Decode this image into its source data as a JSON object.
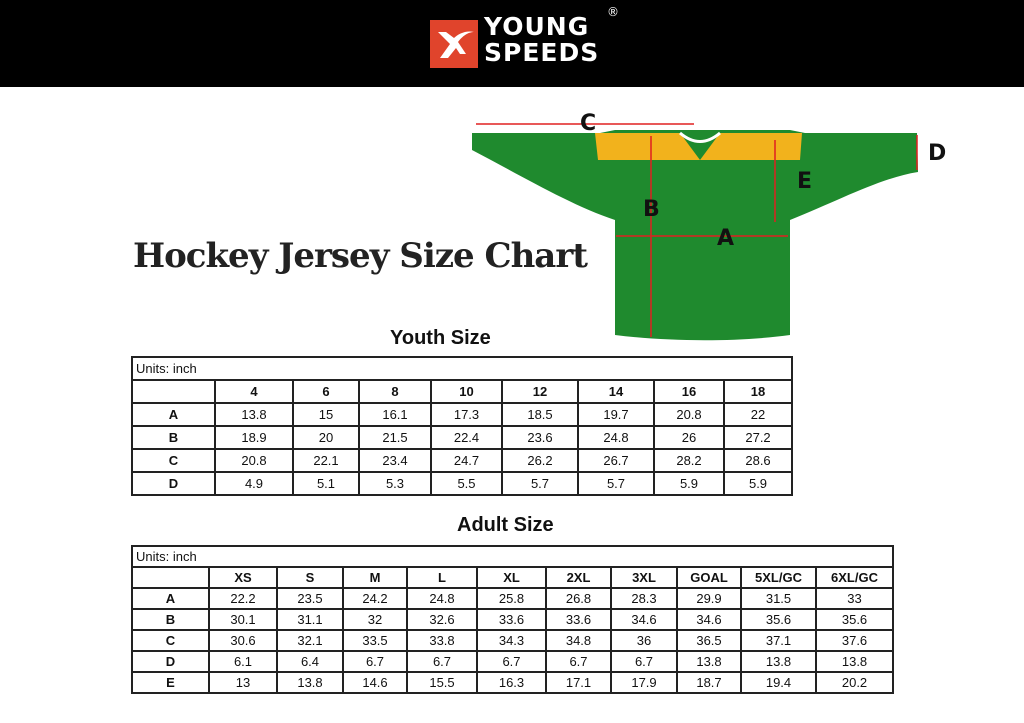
{
  "brand": {
    "line1": "YOUNG",
    "line2": "SPEEDS",
    "registered": "®",
    "logo_color": "#e0442c"
  },
  "title": "Hockey Jersey Size Chart",
  "diagram_labels": {
    "A": "A",
    "B": "B",
    "C": "C",
    "D": "D",
    "E": "E"
  },
  "youth": {
    "heading": "Youth Size",
    "units": "Units: inch",
    "sizes": [
      "4",
      "6",
      "8",
      "10",
      "12",
      "14",
      "16",
      "18"
    ],
    "rows": [
      {
        "label": "A",
        "values": [
          "13.8",
          "15",
          "16.1",
          "17.3",
          "18.5",
          "19.7",
          "20.8",
          "22"
        ]
      },
      {
        "label": "B",
        "values": [
          "18.9",
          "20",
          "21.5",
          "22.4",
          "23.6",
          "24.8",
          "26",
          "27.2"
        ]
      },
      {
        "label": "C",
        "values": [
          "20.8",
          "22.1",
          "23.4",
          "24.7",
          "26.2",
          "26.7",
          "28.2",
          "28.6"
        ]
      },
      {
        "label": "D",
        "values": [
          "4.9",
          "5.1",
          "5.3",
          "5.5",
          "5.7",
          "5.7",
          "5.9",
          "5.9"
        ]
      }
    ]
  },
  "adult": {
    "heading": "Adult Size",
    "units": "Units: inch",
    "sizes": [
      "XS",
      "S",
      "M",
      "L",
      "XL",
      "2XL",
      "3XL",
      "GOAL",
      "5XL/GC",
      "6XL/GC"
    ],
    "rows": [
      {
        "label": "A",
        "values": [
          "22.2",
          "23.5",
          "24.2",
          "24.8",
          "25.8",
          "26.8",
          "28.3",
          "29.9",
          "31.5",
          "33"
        ]
      },
      {
        "label": "B",
        "values": [
          "30.1",
          "31.1",
          "32",
          "32.6",
          "33.6",
          "33.6",
          "34.6",
          "34.6",
          "35.6",
          "35.6"
        ]
      },
      {
        "label": "C",
        "values": [
          "30.6",
          "32.1",
          "33.5",
          "33.8",
          "34.3",
          "34.8",
          "36",
          "36.5",
          "37.1",
          "37.6"
        ]
      },
      {
        "label": "D",
        "values": [
          "6.1",
          "6.4",
          "6.7",
          "6.7",
          "6.7",
          "6.7",
          "6.7",
          "13.8",
          "13.8",
          "13.8"
        ]
      },
      {
        "label": "E",
        "values": [
          "13",
          "13.8",
          "14.6",
          "15.5",
          "16.3",
          "17.1",
          "17.9",
          "18.7",
          "19.4",
          "20.2"
        ]
      }
    ]
  },
  "colors": {
    "jersey_body": "#1f8a2e",
    "jersey_yoke": "#f2b21c",
    "arrows": "#e02020"
  }
}
